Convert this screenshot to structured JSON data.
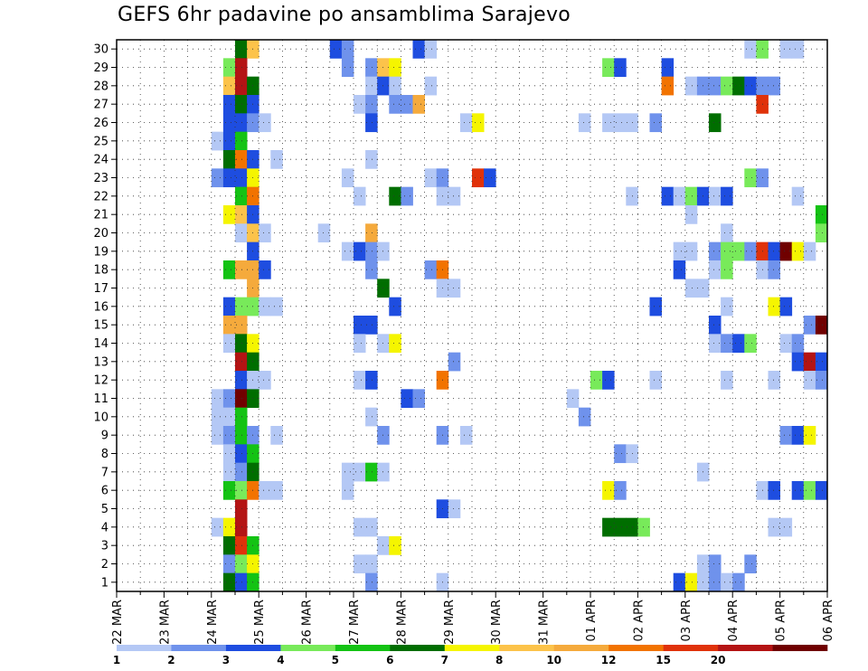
{
  "chart_data": {
    "type": "heatmap",
    "title": "GEFS 6hr padavine po ansamblima Sarajevo",
    "xlabel": "",
    "ylabel": "",
    "x_ticks": [
      "22 MAR",
      "23 MAR",
      "24 MAR",
      "25 MAR",
      "26 MAR",
      "27 MAR",
      "28 MAR",
      "29 MAR",
      "30 MAR",
      "31 MAR",
      "01 APR",
      "02 APR",
      "03 APR",
      "04 APR",
      "05 APR",
      "06 APR"
    ],
    "y_ticks": [
      1,
      2,
      3,
      4,
      5,
      6,
      7,
      8,
      9,
      10,
      11,
      12,
      13,
      14,
      15,
      16,
      17,
      18,
      19,
      20,
      21,
      22,
      23,
      24,
      25,
      26,
      27,
      28,
      29,
      30
    ],
    "time_steps_per_day": 4,
    "total_time_steps": 60,
    "ensemble_members": 30,
    "ylim": [
      0,
      30
    ],
    "grid": true,
    "colorbar": {
      "labels": [
        "1",
        "2",
        "3",
        "4",
        "5",
        "6",
        "7",
        "8",
        "10",
        "12",
        "15",
        "20"
      ],
      "colors": [
        "#b4c8f5",
        "#6f92ec",
        "#1e4de0",
        "#78ea5a",
        "#14c314",
        "#006e00",
        "#f5f500",
        "#fcc34a",
        "#f5aa3c",
        "#f27300",
        "#e0320a",
        "#b41414",
        "#700000"
      ]
    },
    "cells": [
      {
        "m": 30,
        "s": 10,
        "c": 5
      },
      {
        "m": 30,
        "s": 11,
        "c": 7
      },
      {
        "m": 30,
        "s": 18,
        "c": 2
      },
      {
        "m": 30,
        "s": 19,
        "c": 1
      },
      {
        "m": 30,
        "s": 25,
        "c": 2
      },
      {
        "m": 30,
        "s": 26,
        "c": 0
      },
      {
        "m": 30,
        "s": 53,
        "c": 0
      },
      {
        "m": 30,
        "s": 54,
        "c": 3
      },
      {
        "m": 30,
        "s": 56,
        "c": 0
      },
      {
        "m": 30,
        "s": 57,
        "c": 0
      },
      {
        "m": 29,
        "s": 9,
        "c": 3
      },
      {
        "m": 29,
        "s": 10,
        "c": 11
      },
      {
        "m": 29,
        "s": 19,
        "c": 1
      },
      {
        "m": 29,
        "s": 21,
        "c": 1
      },
      {
        "m": 29,
        "s": 22,
        "c": 7
      },
      {
        "m": 29,
        "s": 23,
        "c": 6
      },
      {
        "m": 29,
        "s": 41,
        "c": 3
      },
      {
        "m": 29,
        "s": 42,
        "c": 2
      },
      {
        "m": 29,
        "s": 46,
        "c": 2
      },
      {
        "m": 28,
        "s": 9,
        "c": 7
      },
      {
        "m": 28,
        "s": 10,
        "c": 11
      },
      {
        "m": 28,
        "s": 11,
        "c": 5
      },
      {
        "m": 28,
        "s": 21,
        "c": 0
      },
      {
        "m": 28,
        "s": 22,
        "c": 2
      },
      {
        "m": 28,
        "s": 23,
        "c": 0
      },
      {
        "m": 28,
        "s": 26,
        "c": 0
      },
      {
        "m": 28,
        "s": 46,
        "c": 9
      },
      {
        "m": 28,
        "s": 48,
        "c": 0
      },
      {
        "m": 28,
        "s": 49,
        "c": 1
      },
      {
        "m": 28,
        "s": 50,
        "c": 1
      },
      {
        "m": 28,
        "s": 51,
        "c": 3
      },
      {
        "m": 28,
        "s": 52,
        "c": 5
      },
      {
        "m": 28,
        "s": 53,
        "c": 2
      },
      {
        "m": 28,
        "s": 54,
        "c": 1
      },
      {
        "m": 28,
        "s": 55,
        "c": 1
      },
      {
        "m": 27,
        "s": 9,
        "c": 2
      },
      {
        "m": 27,
        "s": 10,
        "c": 5
      },
      {
        "m": 27,
        "s": 11,
        "c": 2
      },
      {
        "m": 27,
        "s": 20,
        "c": 0
      },
      {
        "m": 27,
        "s": 21,
        "c": 1
      },
      {
        "m": 27,
        "s": 23,
        "c": 1
      },
      {
        "m": 27,
        "s": 24,
        "c": 1
      },
      {
        "m": 27,
        "s": 25,
        "c": 8
      },
      {
        "m": 27,
        "s": 54,
        "c": 10
      },
      {
        "m": 26,
        "s": 9,
        "c": 2
      },
      {
        "m": 26,
        "s": 10,
        "c": 2
      },
      {
        "m": 26,
        "s": 11,
        "c": 1
      },
      {
        "m": 26,
        "s": 12,
        "c": 0
      },
      {
        "m": 26,
        "s": 21,
        "c": 2
      },
      {
        "m": 26,
        "s": 29,
        "c": 0
      },
      {
        "m": 26,
        "s": 30,
        "c": 6
      },
      {
        "m": 26,
        "s": 39,
        "c": 0
      },
      {
        "m": 26,
        "s": 41,
        "c": 0
      },
      {
        "m": 26,
        "s": 42,
        "c": 0
      },
      {
        "m": 26,
        "s": 43,
        "c": 0
      },
      {
        "m": 26,
        "s": 45,
        "c": 1
      },
      {
        "m": 26,
        "s": 50,
        "c": 5
      },
      {
        "m": 25,
        "s": 8,
        "c": 0
      },
      {
        "m": 25,
        "s": 9,
        "c": 2
      },
      {
        "m": 25,
        "s": 10,
        "c": 4
      },
      {
        "m": 24,
        "s": 9,
        "c": 5
      },
      {
        "m": 24,
        "s": 10,
        "c": 9
      },
      {
        "m": 24,
        "s": 11,
        "c": 2
      },
      {
        "m": 24,
        "s": 13,
        "c": 0
      },
      {
        "m": 24,
        "s": 21,
        "c": 0
      },
      {
        "m": 23,
        "s": 8,
        "c": 1
      },
      {
        "m": 23,
        "s": 9,
        "c": 2
      },
      {
        "m": 23,
        "s": 10,
        "c": 2
      },
      {
        "m": 23,
        "s": 11,
        "c": 6
      },
      {
        "m": 23,
        "s": 19,
        "c": 0
      },
      {
        "m": 23,
        "s": 26,
        "c": 0
      },
      {
        "m": 23,
        "s": 27,
        "c": 1
      },
      {
        "m": 23,
        "s": 30,
        "c": 10
      },
      {
        "m": 23,
        "s": 31,
        "c": 2
      },
      {
        "m": 23,
        "s": 53,
        "c": 3
      },
      {
        "m": 23,
        "s": 54,
        "c": 1
      },
      {
        "m": 22,
        "s": 10,
        "c": 4
      },
      {
        "m": 22,
        "s": 11,
        "c": 9
      },
      {
        "m": 22,
        "s": 20,
        "c": 0
      },
      {
        "m": 22,
        "s": 23,
        "c": 5
      },
      {
        "m": 22,
        "s": 24,
        "c": 1
      },
      {
        "m": 22,
        "s": 27,
        "c": 0
      },
      {
        "m": 22,
        "s": 28,
        "c": 0
      },
      {
        "m": 22,
        "s": 43,
        "c": 0
      },
      {
        "m": 22,
        "s": 46,
        "c": 2
      },
      {
        "m": 22,
        "s": 47,
        "c": 0
      },
      {
        "m": 22,
        "s": 48,
        "c": 3
      },
      {
        "m": 22,
        "s": 49,
        "c": 2
      },
      {
        "m": 22,
        "s": 50,
        "c": 0
      },
      {
        "m": 22,
        "s": 51,
        "c": 2
      },
      {
        "m": 22,
        "s": 57,
        "c": 0
      },
      {
        "m": 21,
        "s": 9,
        "c": 6
      },
      {
        "m": 21,
        "s": 10,
        "c": 7
      },
      {
        "m": 21,
        "s": 11,
        "c": 2
      },
      {
        "m": 21,
        "s": 48,
        "c": 0
      },
      {
        "m": 21,
        "s": 59,
        "c": 4
      },
      {
        "m": 20,
        "s": 10,
        "c": 0
      },
      {
        "m": 20,
        "s": 11,
        "c": 7
      },
      {
        "m": 20,
        "s": 12,
        "c": 0
      },
      {
        "m": 20,
        "s": 17,
        "c": 0
      },
      {
        "m": 20,
        "s": 21,
        "c": 8
      },
      {
        "m": 20,
        "s": 51,
        "c": 0
      },
      {
        "m": 20,
        "s": 59,
        "c": 3
      },
      {
        "m": 19,
        "s": 11,
        "c": 2
      },
      {
        "m": 19,
        "s": 19,
        "c": 0
      },
      {
        "m": 19,
        "s": 20,
        "c": 2
      },
      {
        "m": 19,
        "s": 21,
        "c": 1
      },
      {
        "m": 19,
        "s": 22,
        "c": 0
      },
      {
        "m": 19,
        "s": 47,
        "c": 0
      },
      {
        "m": 19,
        "s": 48,
        "c": 0
      },
      {
        "m": 19,
        "s": 50,
        "c": 1
      },
      {
        "m": 19,
        "s": 51,
        "c": 3
      },
      {
        "m": 19,
        "s": 52,
        "c": 3
      },
      {
        "m": 19,
        "s": 53,
        "c": 1
      },
      {
        "m": 19,
        "s": 54,
        "c": 10
      },
      {
        "m": 19,
        "s": 55,
        "c": 2
      },
      {
        "m": 19,
        "s": 56,
        "c": 12
      },
      {
        "m": 19,
        "s": 57,
        "c": 6
      },
      {
        "m": 19,
        "s": 58,
        "c": 0
      },
      {
        "m": 18,
        "s": 9,
        "c": 4
      },
      {
        "m": 18,
        "s": 10,
        "c": 8
      },
      {
        "m": 18,
        "s": 11,
        "c": 8
      },
      {
        "m": 18,
        "s": 12,
        "c": 2
      },
      {
        "m": 18,
        "s": 21,
        "c": 1
      },
      {
        "m": 18,
        "s": 26,
        "c": 1
      },
      {
        "m": 18,
        "s": 27,
        "c": 9
      },
      {
        "m": 18,
        "s": 47,
        "c": 2
      },
      {
        "m": 18,
        "s": 50,
        "c": 0
      },
      {
        "m": 18,
        "s": 51,
        "c": 3
      },
      {
        "m": 18,
        "s": 54,
        "c": 0
      },
      {
        "m": 18,
        "s": 55,
        "c": 1
      },
      {
        "m": 17,
        "s": 11,
        "c": 8
      },
      {
        "m": 17,
        "s": 22,
        "c": 5
      },
      {
        "m": 17,
        "s": 27,
        "c": 0
      },
      {
        "m": 17,
        "s": 28,
        "c": 0
      },
      {
        "m": 17,
        "s": 48,
        "c": 0
      },
      {
        "m": 17,
        "s": 49,
        "c": 0
      },
      {
        "m": 16,
        "s": 9,
        "c": 2
      },
      {
        "m": 16,
        "s": 10,
        "c": 3
      },
      {
        "m": 16,
        "s": 11,
        "c": 3
      },
      {
        "m": 16,
        "s": 12,
        "c": 0
      },
      {
        "m": 16,
        "s": 13,
        "c": 0
      },
      {
        "m": 16,
        "s": 23,
        "c": 2
      },
      {
        "m": 16,
        "s": 45,
        "c": 2
      },
      {
        "m": 16,
        "s": 51,
        "c": 0
      },
      {
        "m": 16,
        "s": 55,
        "c": 6
      },
      {
        "m": 16,
        "s": 56,
        "c": 2
      },
      {
        "m": 15,
        "s": 9,
        "c": 8
      },
      {
        "m": 15,
        "s": 10,
        "c": 8
      },
      {
        "m": 15,
        "s": 20,
        "c": 2
      },
      {
        "m": 15,
        "s": 21,
        "c": 2
      },
      {
        "m": 15,
        "s": 50,
        "c": 2
      },
      {
        "m": 15,
        "s": 58,
        "c": 1
      },
      {
        "m": 15,
        "s": 59,
        "c": 12
      },
      {
        "m": 14,
        "s": 9,
        "c": 0
      },
      {
        "m": 14,
        "s": 10,
        "c": 5
      },
      {
        "m": 14,
        "s": 11,
        "c": 6
      },
      {
        "m": 14,
        "s": 20,
        "c": 0
      },
      {
        "m": 14,
        "s": 22,
        "c": 0
      },
      {
        "m": 14,
        "s": 23,
        "c": 6
      },
      {
        "m": 14,
        "s": 50,
        "c": 0
      },
      {
        "m": 14,
        "s": 51,
        "c": 1
      },
      {
        "m": 14,
        "s": 52,
        "c": 2
      },
      {
        "m": 14,
        "s": 53,
        "c": 3
      },
      {
        "m": 14,
        "s": 56,
        "c": 0
      },
      {
        "m": 14,
        "s": 57,
        "c": 1
      },
      {
        "m": 13,
        "s": 10,
        "c": 11
      },
      {
        "m": 13,
        "s": 11,
        "c": 5
      },
      {
        "m": 13,
        "s": 28,
        "c": 1
      },
      {
        "m": 13,
        "s": 57,
        "c": 2
      },
      {
        "m": 13,
        "s": 58,
        "c": 11
      },
      {
        "m": 13,
        "s": 59,
        "c": 2
      },
      {
        "m": 12,
        "s": 10,
        "c": 2
      },
      {
        "m": 12,
        "s": 11,
        "c": 0
      },
      {
        "m": 12,
        "s": 12,
        "c": 0
      },
      {
        "m": 12,
        "s": 20,
        "c": 0
      },
      {
        "m": 12,
        "s": 21,
        "c": 2
      },
      {
        "m": 12,
        "s": 27,
        "c": 9
      },
      {
        "m": 12,
        "s": 40,
        "c": 3
      },
      {
        "m": 12,
        "s": 41,
        "c": 2
      },
      {
        "m": 12,
        "s": 45,
        "c": 0
      },
      {
        "m": 12,
        "s": 51,
        "c": 0
      },
      {
        "m": 12,
        "s": 55,
        "c": 0
      },
      {
        "m": 12,
        "s": 58,
        "c": 0
      },
      {
        "m": 12,
        "s": 59,
        "c": 1
      },
      {
        "m": 11,
        "s": 8,
        "c": 0
      },
      {
        "m": 11,
        "s": 9,
        "c": 1
      },
      {
        "m": 11,
        "s": 10,
        "c": 12
      },
      {
        "m": 11,
        "s": 11,
        "c": 5
      },
      {
        "m": 11,
        "s": 24,
        "c": 2
      },
      {
        "m": 11,
        "s": 25,
        "c": 1
      },
      {
        "m": 11,
        "s": 38,
        "c": 0
      },
      {
        "m": 10,
        "s": 8,
        "c": 0
      },
      {
        "m": 10,
        "s": 9,
        "c": 0
      },
      {
        "m": 10,
        "s": 10,
        "c": 4
      },
      {
        "m": 10,
        "s": 21,
        "c": 0
      },
      {
        "m": 10,
        "s": 39,
        "c": 1
      },
      {
        "m": 9,
        "s": 8,
        "c": 0
      },
      {
        "m": 9,
        "s": 9,
        "c": 1
      },
      {
        "m": 9,
        "s": 10,
        "c": 4
      },
      {
        "m": 9,
        "s": 11,
        "c": 1
      },
      {
        "m": 9,
        "s": 13,
        "c": 0
      },
      {
        "m": 9,
        "s": 22,
        "c": 1
      },
      {
        "m": 9,
        "s": 27,
        "c": 1
      },
      {
        "m": 9,
        "s": 29,
        "c": 0
      },
      {
        "m": 9,
        "s": 56,
        "c": 1
      },
      {
        "m": 9,
        "s": 57,
        "c": 2
      },
      {
        "m": 9,
        "s": 58,
        "c": 6
      },
      {
        "m": 8,
        "s": 9,
        "c": 0
      },
      {
        "m": 8,
        "s": 10,
        "c": 2
      },
      {
        "m": 8,
        "s": 11,
        "c": 4
      },
      {
        "m": 8,
        "s": 42,
        "c": 1
      },
      {
        "m": 8,
        "s": 43,
        "c": 0
      },
      {
        "m": 7,
        "s": 9,
        "c": 0
      },
      {
        "m": 7,
        "s": 10,
        "c": 1
      },
      {
        "m": 7,
        "s": 11,
        "c": 5
      },
      {
        "m": 7,
        "s": 19,
        "c": 0
      },
      {
        "m": 7,
        "s": 20,
        "c": 0
      },
      {
        "m": 7,
        "s": 21,
        "c": 4
      },
      {
        "m": 7,
        "s": 22,
        "c": 0
      },
      {
        "m": 7,
        "s": 49,
        "c": 0
      },
      {
        "m": 6,
        "s": 9,
        "c": 4
      },
      {
        "m": 6,
        "s": 10,
        "c": 3
      },
      {
        "m": 6,
        "s": 11,
        "c": 9
      },
      {
        "m": 6,
        "s": 12,
        "c": 0
      },
      {
        "m": 6,
        "s": 13,
        "c": 0
      },
      {
        "m": 6,
        "s": 19,
        "c": 0
      },
      {
        "m": 6,
        "s": 41,
        "c": 6
      },
      {
        "m": 6,
        "s": 42,
        "c": 1
      },
      {
        "m": 6,
        "s": 54,
        "c": 0
      },
      {
        "m": 6,
        "s": 55,
        "c": 2
      },
      {
        "m": 6,
        "s": 57,
        "c": 2
      },
      {
        "m": 6,
        "s": 58,
        "c": 3
      },
      {
        "m": 6,
        "s": 59,
        "c": 2
      },
      {
        "m": 5,
        "s": 10,
        "c": 11
      },
      {
        "m": 5,
        "s": 27,
        "c": 2
      },
      {
        "m": 5,
        "s": 28,
        "c": 0
      },
      {
        "m": 4,
        "s": 8,
        "c": 0
      },
      {
        "m": 4,
        "s": 9,
        "c": 6
      },
      {
        "m": 4,
        "s": 10,
        "c": 11
      },
      {
        "m": 4,
        "s": 20,
        "c": 0
      },
      {
        "m": 4,
        "s": 21,
        "c": 0
      },
      {
        "m": 4,
        "s": 41,
        "c": 5
      },
      {
        "m": 4,
        "s": 42,
        "c": 5
      },
      {
        "m": 4,
        "s": 43,
        "c": 5
      },
      {
        "m": 4,
        "s": 44,
        "c": 3
      },
      {
        "m": 4,
        "s": 55,
        "c": 0
      },
      {
        "m": 4,
        "s": 56,
        "c": 0
      },
      {
        "m": 3,
        "s": 9,
        "c": 5
      },
      {
        "m": 3,
        "s": 10,
        "c": 10
      },
      {
        "m": 3,
        "s": 11,
        "c": 4
      },
      {
        "m": 3,
        "s": 22,
        "c": 0
      },
      {
        "m": 3,
        "s": 23,
        "c": 6
      },
      {
        "m": 2,
        "s": 9,
        "c": 1
      },
      {
        "m": 2,
        "s": 10,
        "c": 3
      },
      {
        "m": 2,
        "s": 11,
        "c": 6
      },
      {
        "m": 2,
        "s": 20,
        "c": 0
      },
      {
        "m": 2,
        "s": 21,
        "c": 0
      },
      {
        "m": 2,
        "s": 49,
        "c": 0
      },
      {
        "m": 2,
        "s": 50,
        "c": 1
      },
      {
        "m": 2,
        "s": 53,
        "c": 1
      },
      {
        "m": 1,
        "s": 9,
        "c": 5
      },
      {
        "m": 1,
        "s": 10,
        "c": 2
      },
      {
        "m": 1,
        "s": 11,
        "c": 4
      },
      {
        "m": 1,
        "s": 21,
        "c": 1
      },
      {
        "m": 1,
        "s": 27,
        "c": 0
      },
      {
        "m": 1,
        "s": 47,
        "c": 2
      },
      {
        "m": 1,
        "s": 48,
        "c": 6
      },
      {
        "m": 1,
        "s": 49,
        "c": 0
      },
      {
        "m": 1,
        "s": 50,
        "c": 1
      },
      {
        "m": 1,
        "s": 51,
        "c": 0
      },
      {
        "m": 1,
        "s": 52,
        "c": 1
      }
    ]
  }
}
